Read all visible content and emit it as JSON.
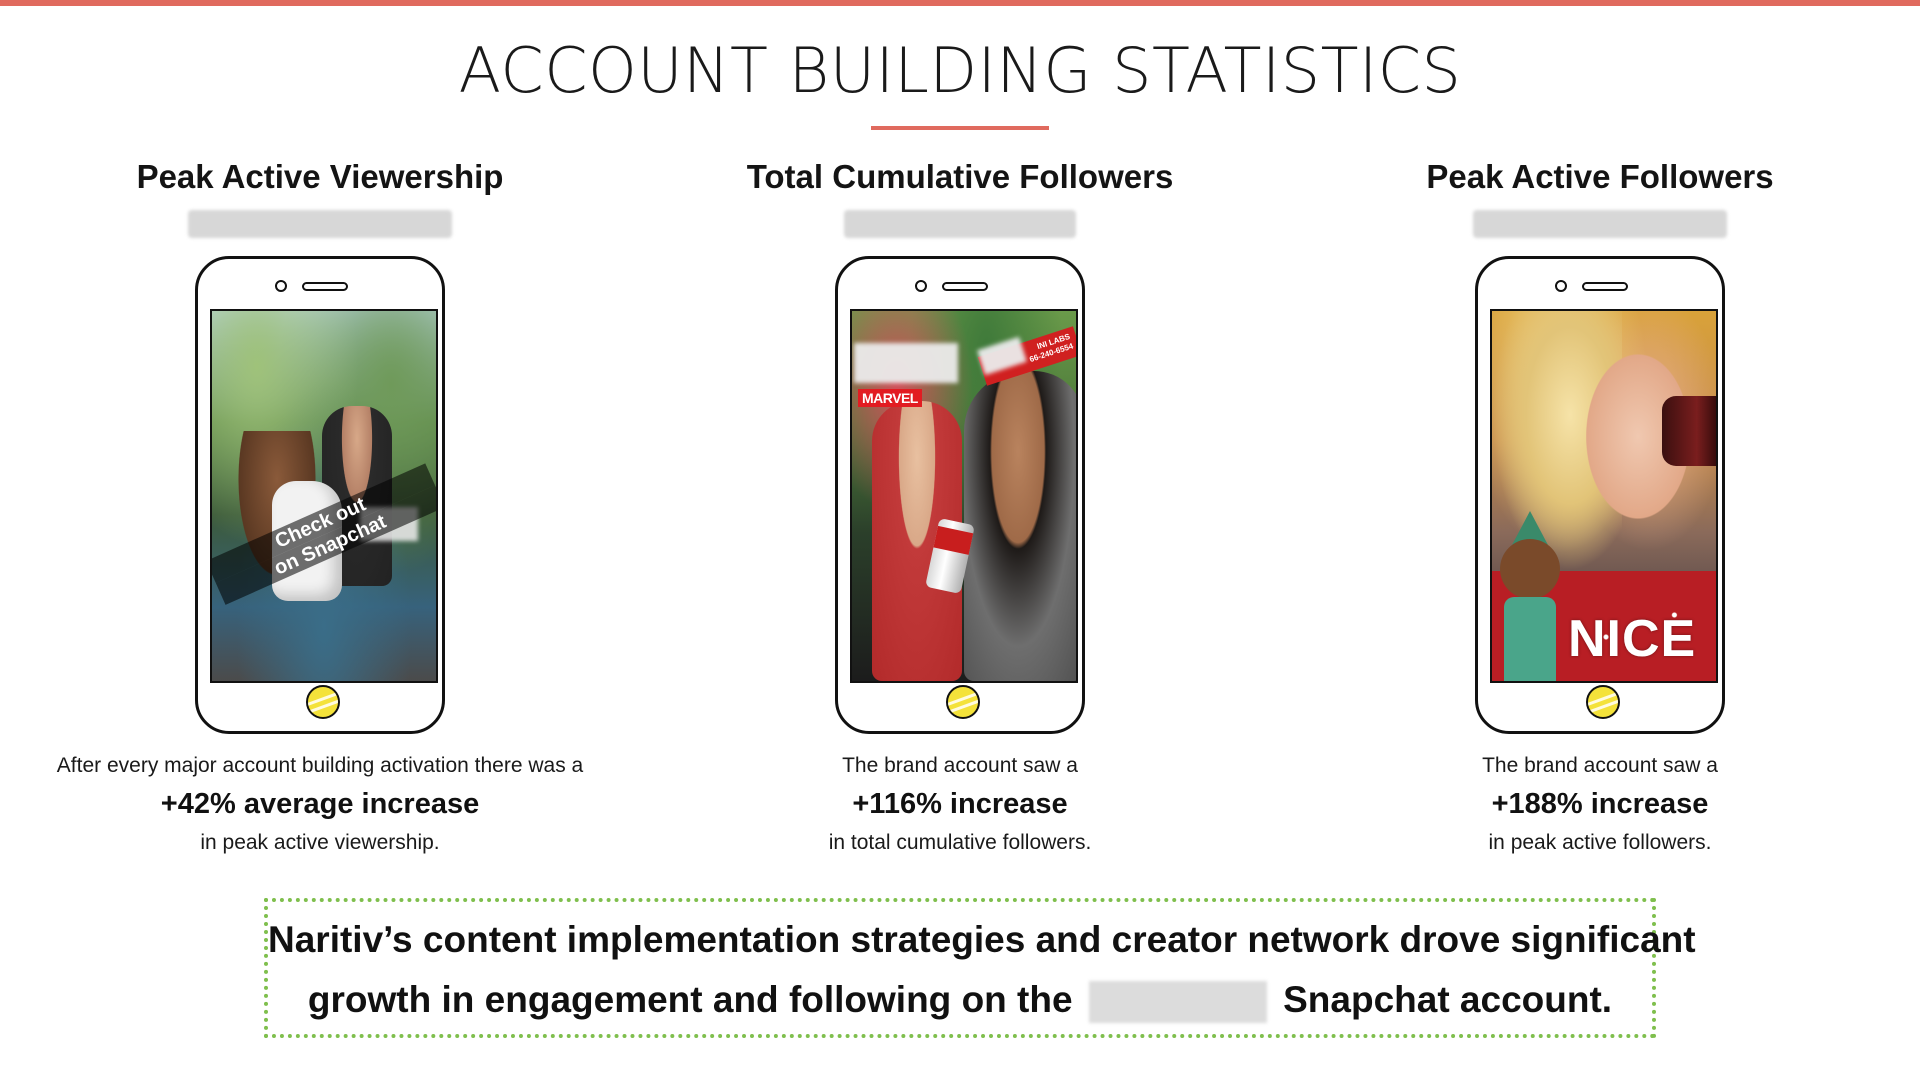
{
  "colors": {
    "accent": "#e06a5e",
    "summary_border": "#7fbf4d",
    "text": "#111111"
  },
  "header": {
    "title": "ACCOUNT BUILDING STATISTICS"
  },
  "columns": [
    {
      "title": "Peak Active Viewership",
      "screen_caption_line1": "Check out",
      "screen_caption_line2": "on Snapchat",
      "line_1": "After every major account building activation there was a",
      "highlight": "+42% average increase",
      "line_3": "in peak active viewership."
    },
    {
      "title": "Total Cumulative Followers",
      "screen_badge": "MARVEL",
      "screen_sticker_line1": "INI LABS",
      "screen_sticker_line2": "66-240-6554",
      "line_1": "The brand account saw a",
      "highlight": "+116% increase",
      "line_3": "in total cumulative followers."
    },
    {
      "title": "Peak Active Followers",
      "screen_text": "NICE",
      "line_1": "The brand account saw a",
      "highlight": "+188% increase",
      "line_3": "in peak active followers."
    }
  ],
  "summary": {
    "line_1": "Naritiv’s content implementation strategies and creator network drove significant",
    "line_2_before": "growth in engagement and following on the",
    "line_2_after": "Snapchat account."
  }
}
